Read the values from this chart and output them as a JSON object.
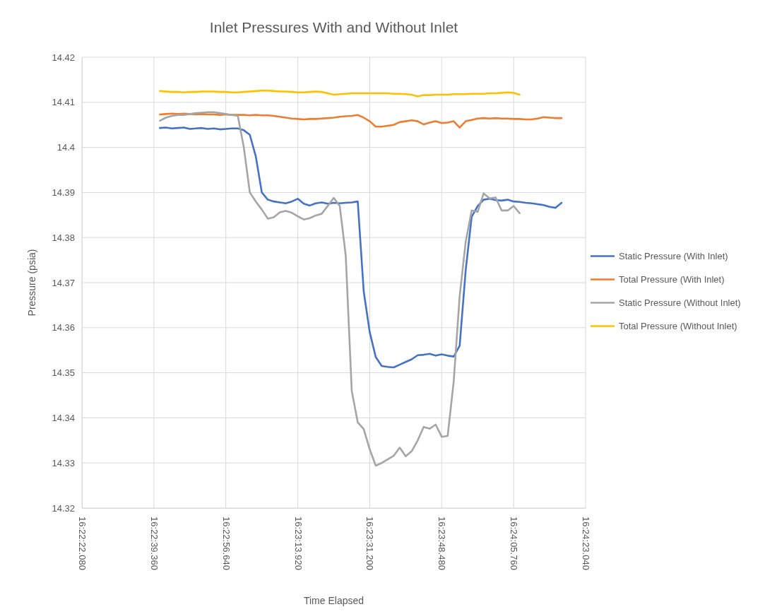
{
  "chart_data": {
    "type": "line",
    "title": "Inlet Pressures With and Without Inlet",
    "xlabel": "Time Elapsed",
    "ylabel": "Pressure (psia)",
    "categories": [
      "16:22:22.080",
      null,
      null,
      null,
      null,
      null,
      null,
      null,
      null,
      null,
      null,
      null,
      "16:22:39.360",
      null,
      null,
      null,
      null,
      null,
      null,
      null,
      null,
      null,
      null,
      null,
      "16:22:56.640",
      null,
      null,
      null,
      null,
      null,
      null,
      null,
      null,
      null,
      null,
      null,
      "16:23:13.920",
      null,
      null,
      null,
      null,
      null,
      null,
      null,
      null,
      null,
      null,
      null,
      "16:23:31.200",
      null,
      null,
      null,
      null,
      null,
      null,
      null,
      null,
      null,
      null,
      null,
      "16:23:48.480",
      null,
      null,
      null,
      null,
      null,
      null,
      null,
      null,
      null,
      null,
      null,
      "16:24:05.760",
      null,
      null,
      null,
      null,
      null,
      null,
      null,
      null,
      null,
      null,
      null,
      "16:24:23.040"
    ],
    "ylim": [
      14.32,
      14.42
    ],
    "yticks": [
      14.32,
      14.33,
      14.34,
      14.35,
      14.36,
      14.37,
      14.38,
      14.39,
      {
        "value": 14.4,
        "label": "14.4"
      },
      14.41,
      14.42
    ],
    "grid": true,
    "legend": "right",
    "line_style": "solid",
    "series": [
      {
        "name": "Static Pressure (With Inlet)",
        "color": "#4472c4",
        "values": [
          null,
          null,
          null,
          null,
          null,
          null,
          null,
          null,
          null,
          null,
          null,
          null,
          null,
          14.4043,
          14.4044,
          14.4042,
          14.4043,
          14.4044,
          14.4041,
          14.4042,
          14.4043,
          14.4041,
          14.4042,
          14.404,
          14.4041,
          14.4042,
          14.4042,
          14.4038,
          14.4028,
          14.398,
          14.39,
          14.3884,
          14.388,
          14.3878,
          14.3876,
          14.388,
          14.3886,
          14.3875,
          14.3871,
          14.3876,
          14.3878,
          14.3875,
          14.3877,
          14.3876,
          14.3877,
          14.3878,
          14.388,
          14.368,
          14.359,
          14.3535,
          14.3515,
          14.3513,
          14.3512,
          14.3518,
          14.3524,
          14.353,
          14.3539,
          14.354,
          14.3542,
          14.3538,
          14.3541,
          14.3538,
          14.3536,
          14.356,
          14.3727,
          14.3846,
          14.387,
          14.3884,
          14.3886,
          14.3883,
          14.3882,
          14.3884,
          14.388,
          14.3879,
          14.3877,
          14.3876,
          14.3874,
          14.3872,
          14.3868,
          14.3866,
          14.3877,
          null,
          null,
          null,
          null
        ]
      },
      {
        "name": "Total Pressure (With Inlet)",
        "color": "#ed7d31",
        "values": [
          null,
          null,
          null,
          null,
          null,
          null,
          null,
          null,
          null,
          null,
          null,
          null,
          null,
          14.4073,
          14.4074,
          14.4075,
          14.4074,
          14.4075,
          14.4074,
          14.4073,
          14.4074,
          14.4073,
          14.4073,
          14.4072,
          14.4073,
          14.4072,
          14.4072,
          14.4072,
          14.4071,
          14.4072,
          14.4071,
          14.4071,
          14.407,
          14.4068,
          14.4066,
          14.4064,
          14.4063,
          14.4062,
          14.4063,
          14.4063,
          14.4064,
          14.4065,
          14.4066,
          14.4068,
          14.4069,
          14.407,
          14.4072,
          14.4066,
          14.4058,
          14.4046,
          14.4046,
          14.4048,
          14.405,
          14.4056,
          14.4058,
          14.406,
          14.4058,
          14.4051,
          14.4055,
          14.4058,
          14.4054,
          14.4055,
          14.4058,
          14.4044,
          14.4058,
          14.4061,
          14.4064,
          14.4065,
          14.4064,
          14.4065,
          14.4064,
          14.4064,
          14.4063,
          14.4063,
          14.4062,
          14.4062,
          14.4064,
          14.4067,
          14.4066,
          14.4065,
          14.4065,
          null,
          null,
          null,
          null
        ]
      },
      {
        "name": "Static Pressure (Without Inlet)",
        "color": "#a5a5a5",
        "values": [
          null,
          null,
          null,
          null,
          null,
          null,
          null,
          null,
          null,
          null,
          null,
          null,
          null,
          14.4059,
          14.4066,
          14.407,
          14.4072,
          14.4072,
          14.4074,
          14.4076,
          14.4077,
          14.4078,
          14.4078,
          14.4076,
          14.4074,
          14.4072,
          14.407,
          14.4,
          14.39,
          14.388,
          14.3862,
          14.3842,
          14.3845,
          14.3856,
          14.3859,
          14.3855,
          14.3847,
          14.384,
          14.3843,
          14.3849,
          14.3853,
          14.387,
          14.3888,
          14.387,
          14.376,
          14.346,
          14.339,
          14.3375,
          14.333,
          14.3294,
          14.33,
          14.3308,
          14.3316,
          14.3334,
          14.3315,
          14.3326,
          14.335,
          14.338,
          14.3376,
          14.3385,
          14.3358,
          14.336,
          14.348,
          14.367,
          14.379,
          14.386,
          14.3857,
          14.3898,
          14.3887,
          14.3889,
          14.386,
          14.386,
          14.387,
          14.3854,
          null,
          null,
          null,
          null,
          null,
          null,
          null,
          null,
          null,
          null,
          null
        ]
      },
      {
        "name": "Total Pressure (Without Inlet)",
        "color": "#ffc000",
        "values": [
          null,
          null,
          null,
          null,
          null,
          null,
          null,
          null,
          null,
          null,
          null,
          null,
          null,
          14.4125,
          14.4124,
          14.4123,
          14.4123,
          14.4122,
          14.4123,
          14.4123,
          14.4124,
          14.4124,
          14.4124,
          14.4123,
          14.4123,
          14.4122,
          14.4122,
          14.4123,
          14.4124,
          14.4125,
          14.4126,
          14.4126,
          14.4125,
          14.4124,
          14.4124,
          14.4123,
          14.4122,
          14.4122,
          14.4123,
          14.4124,
          14.4123,
          14.412,
          14.4117,
          14.4118,
          14.4119,
          14.412,
          14.412,
          14.412,
          14.412,
          14.412,
          14.412,
          14.412,
          14.4119,
          14.4119,
          14.4118,
          14.4117,
          14.4113,
          14.4116,
          14.4116,
          14.4117,
          14.4117,
          14.4117,
          14.4118,
          14.4118,
          14.4118,
          14.4119,
          14.4119,
          14.4119,
          14.412,
          14.412,
          14.4121,
          14.4122,
          14.4121,
          14.4117,
          null,
          null,
          null,
          null,
          null,
          null,
          null,
          null,
          null,
          null,
          null
        ]
      }
    ]
  }
}
